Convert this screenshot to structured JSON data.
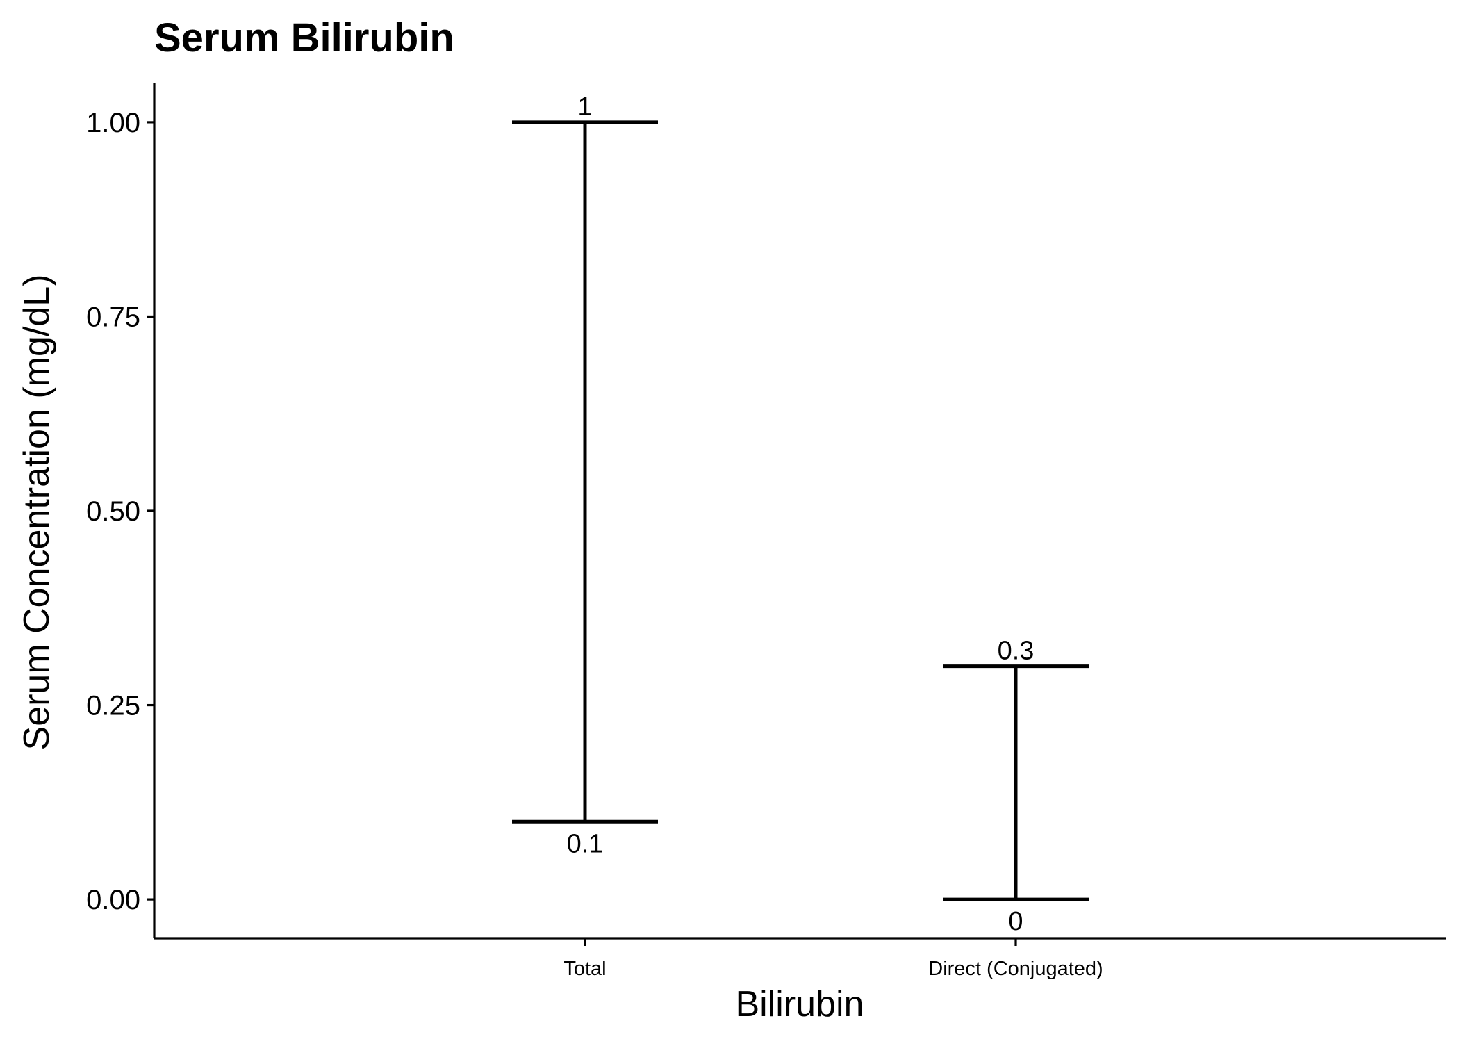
{
  "chart_data": {
    "type": "errorbar",
    "title": "Serum Bilirubin",
    "xlabel": "Bilirubin",
    "ylabel": "Serum Concentration (mg/dL)",
    "categories": [
      "Total",
      "Direct (Conjugated)"
    ],
    "ranges": [
      {
        "category": "Total",
        "low": 0.1,
        "high": 1,
        "low_label": "0.1",
        "high_label": "1"
      },
      {
        "category": "Direct (Conjugated)",
        "low": 0,
        "high": 0.3,
        "low_label": "0",
        "high_label": "0.3"
      }
    ],
    "ylim": [
      -0.05,
      1.05
    ],
    "yticks": [
      0,
      0.25,
      0.5,
      0.75,
      1
    ],
    "ytick_labels": [
      "0.00",
      "0.25",
      "0.50",
      "0.75",
      "1.00"
    ],
    "grid": false,
    "legend": "none",
    "color": "#000000"
  }
}
